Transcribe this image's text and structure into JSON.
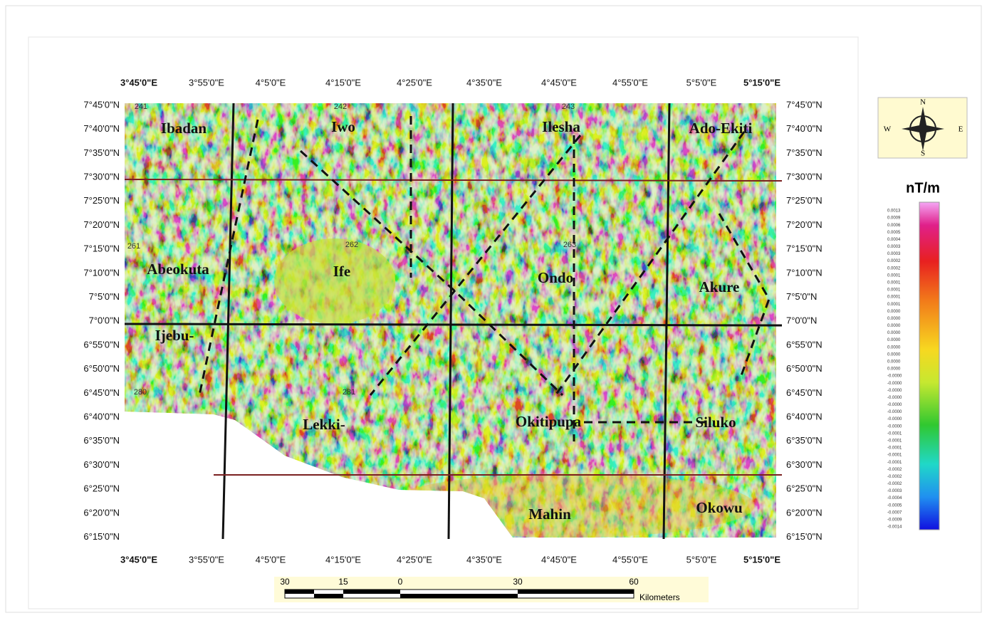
{
  "map": {
    "lon_labels": [
      "3°45'0\"E",
      "3°55'0\"E",
      "4°5'0\"E",
      "4°15'0\"E",
      "4°25'0\"E",
      "4°35'0\"E",
      "4°45'0\"E",
      "4°55'0\"E",
      "5°5'0\"E",
      "5°15'0\"E"
    ],
    "lat_labels": [
      "7°45'0\"N",
      "7°40'0\"N",
      "7°35'0\"N",
      "7°30'0\"N",
      "7°25'0\"N",
      "7°20'0\"N",
      "7°15'0\"N",
      "7°10'0\"N",
      "7°5'0\"N",
      "7°0'0\"N",
      "6°55'0\"N",
      "6°50'0\"N",
      "6°45'0\"N",
      "6°40'0\"N",
      "6°35'0\"N",
      "6°30'0\"N",
      "6°25'0\"N",
      "6°20'0\"N",
      "6°15'0\"N"
    ],
    "places": [
      "Ibadan",
      "Iwo",
      "Ilesha",
      "Ado-Ekiti",
      "Abeokuta",
      "Ife",
      "Ondo",
      "Akure",
      "Ijebu-",
      "Lekki-",
      "Okitipupa",
      "Siluko",
      "Mahin",
      "Okowu"
    ],
    "sheets": [
      "241",
      "242",
      "243",
      "261",
      "262",
      "263",
      "280",
      "281"
    ]
  },
  "compass": {
    "n": "N",
    "s": "S",
    "e": "E",
    "w": "W"
  },
  "legend": {
    "title": "nT/m",
    "values": [
      "0.0013",
      "0.0009",
      "0.0006",
      "0.0005",
      "0.0004",
      "0.0003",
      "0.0003",
      "0.0002",
      "0.0002",
      "0.0001",
      "0.0001",
      "0.0001",
      "0.0001",
      "0.0001",
      "0.0000",
      "0.0000",
      "0.0000",
      "0.0000",
      "0.0000",
      "0.0000",
      "0.0000",
      "0.0000",
      "0.0000",
      "-0.0000",
      "-0.0000",
      "-0.0000",
      "-0.0000",
      "-0.0000",
      "-0.0000",
      "-0.0000",
      "-0.0000",
      "-0.0001",
      "-0.0001",
      "-0.0001",
      "-0.0001",
      "-0.0001",
      "-0.0002",
      "-0.0002",
      "-0.0002",
      "-0.0003",
      "-0.0004",
      "-0.0005",
      "-0.0007",
      "-0.0009",
      "-0.0014"
    ]
  },
  "scale": {
    "ticks": [
      "30",
      "15",
      "0",
      "30",
      "60"
    ],
    "unit": "Kilometers"
  }
}
